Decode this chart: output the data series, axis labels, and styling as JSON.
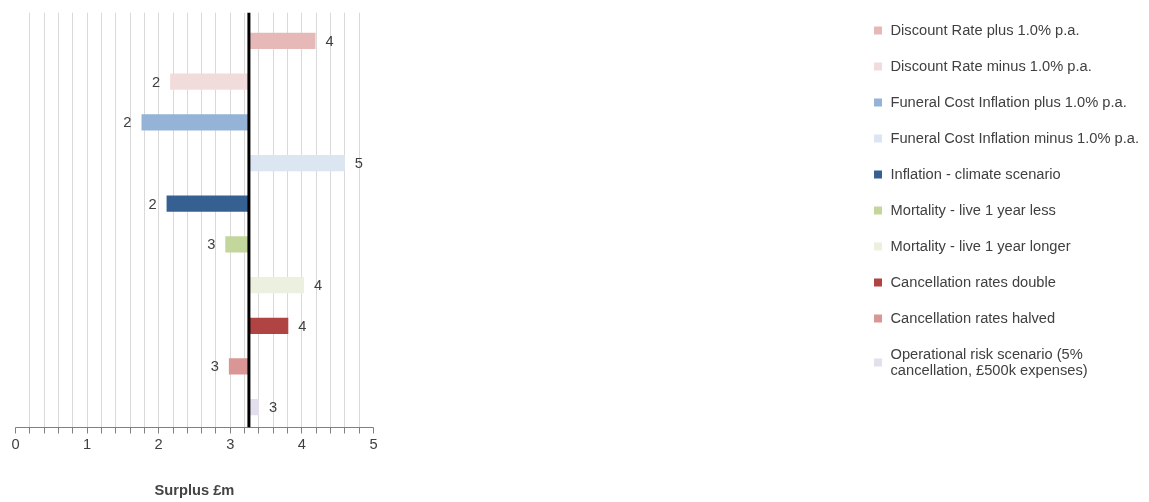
{
  "chart_data": {
    "type": "bar",
    "orientation": "horizontal",
    "xlabel": "Surplus £m",
    "categories": [
      null,
      null,
      null,
      null,
      null,
      null,
      null,
      null,
      null,
      null
    ],
    "series": [
      {
        "name": "Discount Rate plus 1.0% p.a.",
        "color": "#e6b9b8",
        "base": [
          3.26,
          null,
          null,
          null,
          null,
          null,
          null,
          null,
          null,
          null
        ],
        "values": [
          0.93,
          null,
          null,
          null,
          null,
          null,
          null,
          null,
          null,
          null
        ],
        "value_labels": [
          "4",
          null,
          null,
          null,
          null,
          null,
          null,
          null,
          null,
          null
        ]
      },
      {
        "name": "Discount Rate minus 1.0% p.a.",
        "color": "#f2dcdb",
        "base": [
          null,
          3.26,
          null,
          null,
          null,
          null,
          null,
          null,
          null,
          null
        ],
        "values": [
          null,
          -1.1,
          null,
          null,
          null,
          null,
          null,
          null,
          null,
          null
        ],
        "value_labels": [
          null,
          "2",
          null,
          null,
          null,
          null,
          null,
          null,
          null,
          null
        ]
      },
      {
        "name": "Funeral Cost Inflation plus 1.0% p.a.",
        "color": "#95b3d7",
        "base": [
          null,
          null,
          3.26,
          null,
          null,
          null,
          null,
          null,
          null,
          null
        ],
        "values": [
          null,
          null,
          -1.5,
          null,
          null,
          null,
          null,
          null,
          null,
          null
        ],
        "value_labels": [
          null,
          null,
          "2",
          null,
          null,
          null,
          null,
          null,
          null,
          null
        ]
      },
      {
        "name": "Funeral Cost Inflation minus 1.0% p.a.",
        "color": "#dce6f2",
        "base": [
          null,
          null,
          null,
          3.26,
          null,
          null,
          null,
          null,
          null,
          null
        ],
        "values": [
          null,
          null,
          null,
          1.34,
          null,
          null,
          null,
          null,
          null,
          null
        ],
        "value_labels": [
          null,
          null,
          null,
          "5",
          null,
          null,
          null,
          null,
          null,
          null
        ]
      },
      {
        "name": "Inflation - climate scenario",
        "color": "#376092",
        "base": [
          null,
          null,
          null,
          null,
          3.26,
          null,
          null,
          null,
          null,
          null
        ],
        "values": [
          null,
          null,
          null,
          null,
          -1.15,
          null,
          null,
          null,
          null,
          null
        ],
        "value_labels": [
          null,
          null,
          null,
          null,
          "2",
          null,
          null,
          null,
          null,
          null
        ]
      },
      {
        "name": "Mortality - live 1 year less",
        "color": "#c3d69b",
        "base": [
          null,
          null,
          null,
          null,
          null,
          3.26,
          null,
          null,
          null,
          null
        ],
        "values": [
          null,
          null,
          null,
          null,
          null,
          -0.33,
          null,
          null,
          null,
          null
        ],
        "value_labels": [
          null,
          null,
          null,
          null,
          null,
          "3",
          null,
          null,
          null,
          null
        ]
      },
      {
        "name": "Mortality - live 1 year longer",
        "color": "#ebf1de",
        "base": [
          null,
          null,
          null,
          null,
          null,
          null,
          3.26,
          null,
          null,
          null
        ],
        "values": [
          null,
          null,
          null,
          null,
          null,
          null,
          0.77,
          null,
          null,
          null
        ],
        "value_labels": [
          null,
          null,
          null,
          null,
          null,
          null,
          "4",
          null,
          null,
          null
        ]
      },
      {
        "name": "Cancellation rates double",
        "color": "#b04442",
        "base": [
          null,
          null,
          null,
          null,
          null,
          null,
          null,
          3.26,
          null,
          null
        ],
        "values": [
          null,
          null,
          null,
          null,
          null,
          null,
          null,
          0.55,
          null,
          null
        ],
        "value_labels": [
          null,
          null,
          null,
          null,
          null,
          null,
          null,
          "4",
          null,
          null
        ]
      },
      {
        "name": "Cancellation rates halved",
        "color": "#d99694",
        "base": [
          null,
          null,
          null,
          null,
          null,
          null,
          null,
          null,
          3.26,
          null
        ],
        "values": [
          null,
          null,
          null,
          null,
          null,
          null,
          null,
          null,
          -0.28,
          null
        ],
        "value_labels": [
          null,
          null,
          null,
          null,
          null,
          null,
          null,
          null,
          "3",
          null
        ]
      },
      {
        "name": "Operational risk scenario (5% cancellation, £500k expenses)",
        "color": "#e4dfec",
        "base": [
          null,
          null,
          null,
          null,
          null,
          null,
          null,
          null,
          null,
          3.26
        ],
        "values": [
          null,
          null,
          null,
          null,
          null,
          null,
          null,
          null,
          null,
          0.14
        ],
        "value_labels": [
          null,
          null,
          null,
          null,
          null,
          null,
          null,
          null,
          null,
          "3"
        ]
      }
    ],
    "xlim": [
      0,
      5
    ],
    "xticks": [
      0,
      {
        "value": 0.2,
        "label": null
      },
      {
        "value": 0.4,
        "label": null
      },
      {
        "value": 0.6,
        "label": null
      },
      {
        "value": 0.8,
        "label": null
      },
      1,
      {
        "value": 1.2,
        "label": null
      },
      {
        "value": 1.4,
        "label": null
      },
      {
        "value": 1.6,
        "label": null
      },
      {
        "value": 1.8,
        "label": null
      },
      2,
      {
        "value": 2.2,
        "label": null
      },
      {
        "value": 2.4,
        "label": null
      },
      {
        "value": 2.6,
        "label": null
      },
      {
        "value": 2.8,
        "label": null
      },
      3,
      {
        "value": 3.2,
        "label": null
      },
      {
        "value": 3.4,
        "label": null
      },
      {
        "value": 3.6,
        "label": null
      },
      {
        "value": 3.8,
        "label": null
      },
      4,
      {
        "value": 4.2,
        "label": null
      },
      {
        "value": 4.4,
        "label": null
      },
      {
        "value": 4.6,
        "label": null
      },
      {
        "value": 4.8,
        "label": null
      },
      5
    ],
    "ref_lines": [
      {
        "axis": "x",
        "value": 3.26,
        "color": "#000000"
      }
    ],
    "grid": "x",
    "legend": "right",
    "tick_labels": "x"
  }
}
